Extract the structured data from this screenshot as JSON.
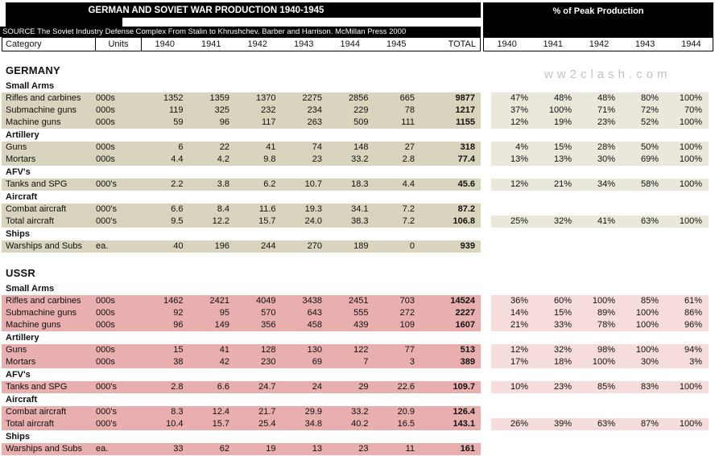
{
  "header": {
    "title": "GERMAN AND SOVIET WAR PRODUCTION 1940-1945",
    "peak_title": "% of Peak Production",
    "source": "SOURCE The Soviet Industry Defense Complex From Stalin to Khrushchev. Barber and Harrison. McMillan Press 2000",
    "watermark": "ww2clash.com"
  },
  "columns": {
    "category": "Category",
    "units": "Units",
    "years": [
      "1940",
      "1941",
      "1942",
      "1943",
      "1944",
      "1945"
    ],
    "total": "TOTAL",
    "peak_years": [
      "1940",
      "1941",
      "1942",
      "1943",
      "1944"
    ]
  },
  "colors": {
    "germany_row_bg": "#d8d4bd",
    "germany_peak_bg": "#eae8da",
    "ussr_row_bg": "#e9aeae",
    "ussr_peak_bg": "#f6dcdb",
    "bar_bg": "#000000",
    "bar_text": "#ffffff",
    "watermark_text": "#c4c3c3"
  },
  "chart_data": {
    "type": "table",
    "title": "GERMAN AND SOVIET WAR PRODUCTION 1940-1945",
    "value_columns": [
      "Category",
      "Units",
      "1940",
      "1941",
      "1942",
      "1943",
      "1944",
      "1945",
      "TOTAL"
    ],
    "peak_columns": [
      "1940",
      "1941",
      "1942",
      "1943",
      "1944"
    ],
    "sections": [
      {
        "name": "GERMANY",
        "groups": [
          {
            "label": "Small Arms",
            "rows": [
              {
                "category": "Rifles and carbines",
                "units": "000s",
                "values": [
                  "1352",
                  "1359",
                  "1370",
                  "2275",
                  "2856",
                  "665"
                ],
                "total": "9877",
                "peak": [
                  "47%",
                  "48%",
                  "48%",
                  "80%",
                  "100%"
                ]
              },
              {
                "category": "Submachine guns",
                "units": "000s",
                "values": [
                  "119",
                  "325",
                  "232",
                  "234",
                  "229",
                  "78"
                ],
                "total": "1217",
                "peak": [
                  "37%",
                  "100%",
                  "71%",
                  "72%",
                  "70%"
                ]
              },
              {
                "category": "Machine guns",
                "units": "000s",
                "values": [
                  "59",
                  "96",
                  "117",
                  "263",
                  "509",
                  "111"
                ],
                "total": "1155",
                "peak": [
                  "12%",
                  "19%",
                  "23%",
                  "52%",
                  "100%"
                ]
              }
            ]
          },
          {
            "label": "Artillery",
            "rows": [
              {
                "category": "Guns",
                "units": "000s",
                "values": [
                  "6",
                  "22",
                  "41",
                  "74",
                  "148",
                  "27"
                ],
                "total": "318",
                "peak": [
                  "4%",
                  "15%",
                  "28%",
                  "50%",
                  "100%"
                ]
              },
              {
                "category": "Mortars",
                "units": "000s",
                "values": [
                  "4.4",
                  "4.2",
                  "9.8",
                  "23",
                  "33.2",
                  "2.8"
                ],
                "total": "77.4",
                "peak": [
                  "13%",
                  "13%",
                  "30%",
                  "69%",
                  "100%"
                ]
              }
            ]
          },
          {
            "label": "AFV's",
            "rows": [
              {
                "category": "Tanks and SPG",
                "units": "000's",
                "values": [
                  "2.2",
                  "3.8",
                  "6.2",
                  "10.7",
                  "18.3",
                  "4.4"
                ],
                "total": "45.6",
                "peak": [
                  "12%",
                  "21%",
                  "34%",
                  "58%",
                  "100%"
                ]
              }
            ]
          },
          {
            "label": "Aircraft",
            "rows": [
              {
                "category": "Combat aircraft",
                "units": "000's",
                "values": [
                  "6.6",
                  "8.4",
                  "11.6",
                  "19.3",
                  "34.1",
                  "7.2"
                ],
                "total": "87.2",
                "peak": null
              },
              {
                "category": "Total aircraft",
                "units": "000's",
                "values": [
                  "9.5",
                  "12.2",
                  "15.7",
                  "24.0",
                  "38.3",
                  "7.2"
                ],
                "total": "106.8",
                "peak": [
                  "25%",
                  "32%",
                  "41%",
                  "63%",
                  "100%"
                ]
              }
            ]
          },
          {
            "label": "Ships",
            "rows": [
              {
                "category": "Warships and Subs",
                "units": "ea.",
                "values": [
                  "40",
                  "196",
                  "244",
                  "270",
                  "189",
                  "0"
                ],
                "total": "939",
                "peak": null
              }
            ]
          }
        ]
      },
      {
        "name": "USSR",
        "groups": [
          {
            "label": "Small Arms",
            "rows": [
              {
                "category": "Rifles and carbines",
                "units": "000s",
                "values": [
                  "1462",
                  "2421",
                  "4049",
                  "3438",
                  "2451",
                  "703"
                ],
                "total": "14524",
                "peak": [
                  "36%",
                  "60%",
                  "100%",
                  "85%",
                  "61%"
                ]
              },
              {
                "category": "Submachine guns",
                "units": "000s",
                "values": [
                  "92",
                  "95",
                  "570",
                  "643",
                  "555",
                  "272"
                ],
                "total": "2227",
                "peak": [
                  "14%",
                  "15%",
                  "89%",
                  "100%",
                  "86%"
                ]
              },
              {
                "category": "Machine guns",
                "units": "000s",
                "values": [
                  "96",
                  "149",
                  "356",
                  "458",
                  "439",
                  "109"
                ],
                "total": "1607",
                "peak": [
                  "21%",
                  "33%",
                  "78%",
                  "100%",
                  "96%"
                ]
              }
            ]
          },
          {
            "label": "Artillery",
            "rows": [
              {
                "category": "Guns",
                "units": "000s",
                "values": [
                  "15",
                  "41",
                  "128",
                  "130",
                  "122",
                  "77"
                ],
                "total": "513",
                "peak": [
                  "12%",
                  "32%",
                  "98%",
                  "100%",
                  "94%"
                ]
              },
              {
                "category": "Mortars",
                "units": "000s",
                "values": [
                  "38",
                  "42",
                  "230",
                  "69",
                  "7",
                  "3"
                ],
                "total": "389",
                "peak": [
                  "17%",
                  "18%",
                  "100%",
                  "30%",
                  "3%"
                ]
              }
            ]
          },
          {
            "label": "AFV's",
            "rows": [
              {
                "category": "Tanks and SPG",
                "units": "000's",
                "values": [
                  "2.8",
                  "6.6",
                  "24.7",
                  "24",
                  "29",
                  "22.6"
                ],
                "total": "109.7",
                "peak": [
                  "10%",
                  "23%",
                  "85%",
                  "83%",
                  "100%"
                ]
              }
            ]
          },
          {
            "label": "Aircraft",
            "rows": [
              {
                "category": "Combat aircraft",
                "units": "000's",
                "values": [
                  "8.3",
                  "12.4",
                  "21.7",
                  "29.9",
                  "33.2",
                  "20.9"
                ],
                "total": "126.4",
                "peak": null
              },
              {
                "category": "Total aircraft",
                "units": "000's",
                "values": [
                  "10.4",
                  "15.7",
                  "25.4",
                  "34.8",
                  "40.2",
                  "16.5"
                ],
                "total": "143.1",
                "peak": [
                  "26%",
                  "39%",
                  "63%",
                  "87%",
                  "100%"
                ]
              }
            ]
          },
          {
            "label": "Ships",
            "rows": [
              {
                "category": "Warships and Subs",
                "units": "ea.",
                "values": [
                  "33",
                  "62",
                  "19",
                  "13",
                  "23",
                  "11"
                ],
                "total": "161",
                "peak": null
              }
            ]
          }
        ]
      }
    ]
  }
}
